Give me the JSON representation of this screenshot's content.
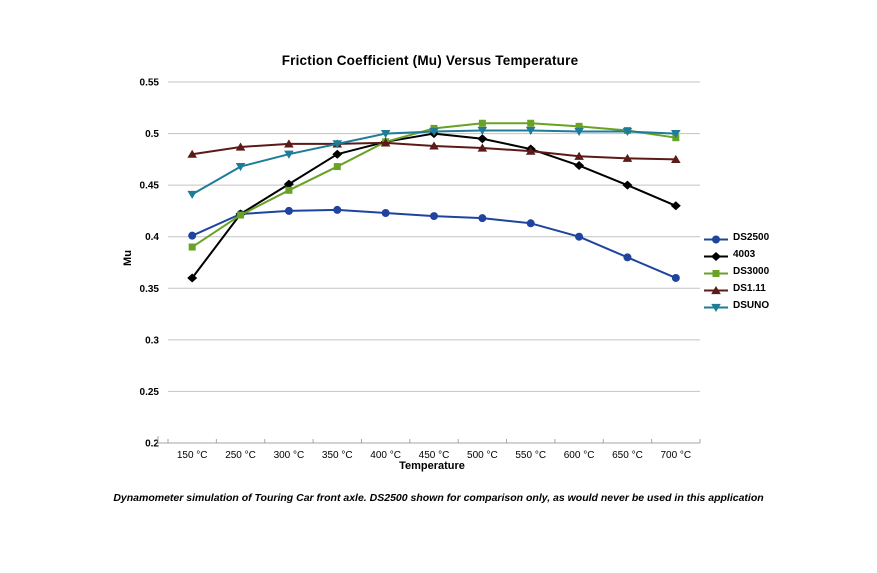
{
  "page": {
    "caption": "Dynamometer simulation of Touring Car front axle. DS2500 shown for comparison only, as would never be used in this application"
  },
  "chart_data": {
    "type": "line",
    "title": "Friction Coefficient (Mu) Versus Temperature",
    "xlabel": "Temperature",
    "ylabel": "Mu",
    "ylim": [
      0.2,
      0.55
    ],
    "ytick_step": 0.05,
    "ytick_labels": [
      "0.55",
      "0.5",
      "0.45",
      "0.4",
      "0.35",
      "0.3",
      "0.25",
      "0.2"
    ],
    "categories": [
      "150 °C",
      "250 °C",
      "300 °C",
      "350 °C",
      "400 °C",
      "450 °C",
      "500 °C",
      "550 °C",
      "600 °C",
      "650 °C",
      "700 °C"
    ],
    "grid": "horizontal",
    "legend_position": "right",
    "series": [
      {
        "name": "DS2500",
        "marker": "circle",
        "color": "#1F449E",
        "values": [
          0.401,
          0.422,
          0.425,
          0.426,
          0.423,
          0.42,
          0.418,
          0.413,
          0.4,
          0.38,
          0.36
        ]
      },
      {
        "name": "4003",
        "marker": "diamond",
        "color": "#000000",
        "values": [
          0.36,
          0.422,
          0.451,
          0.48,
          0.492,
          0.5,
          0.495,
          0.485,
          0.469,
          0.45,
          0.43
        ]
      },
      {
        "name": "DS3000",
        "marker": "square",
        "color": "#69A224",
        "values": [
          0.39,
          0.421,
          0.445,
          0.468,
          0.492,
          0.505,
          0.51,
          0.51,
          0.507,
          0.503,
          0.496
        ]
      },
      {
        "name": "DS1.11",
        "marker": "triangle-up",
        "color": "#5C1B18",
        "values": [
          0.48,
          0.487,
          0.49,
          0.49,
          0.491,
          0.488,
          0.486,
          0.483,
          0.478,
          0.476,
          0.475
        ]
      },
      {
        "name": "DSUNO",
        "marker": "triangle-down",
        "color": "#1E7C99",
        "values": [
          0.441,
          0.468,
          0.48,
          0.49,
          0.5,
          0.502,
          0.503,
          0.503,
          0.502,
          0.502,
          0.5
        ]
      }
    ],
    "colors": {
      "gridline": "#C3C3C3",
      "axis": "#A6A6A6",
      "text": "#000000",
      "background": "#FFFFFF"
    }
  }
}
